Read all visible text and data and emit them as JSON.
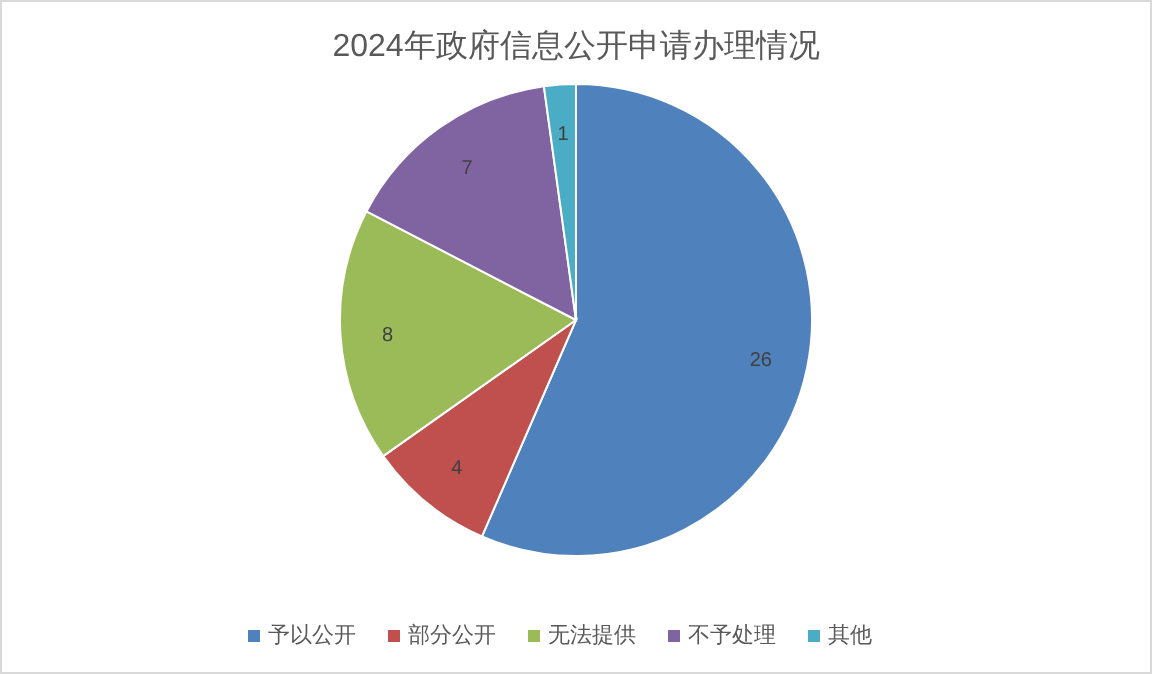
{
  "chart_data": {
    "type": "pie",
    "title": "2024年政府信息公开申请办理情况",
    "categories": [
      "予以公开",
      "部分公开",
      "无法提供",
      "不予处理",
      "其他"
    ],
    "values": [
      26,
      4,
      8,
      7,
      1
    ],
    "colors": [
      "#4f81bd",
      "#c0504d",
      "#9bbb59",
      "#8064a2",
      "#4bacc6"
    ],
    "data_labels": true,
    "legend": "bottom"
  }
}
